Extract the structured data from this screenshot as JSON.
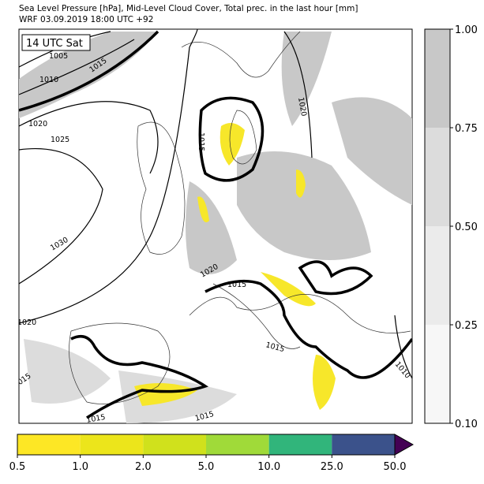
{
  "header": {
    "title": "Sea Level Pressure [hPa], Mid-Level Cloud Cover, Total prec. in the last hour [mm]",
    "subtitle": "WRF 03.09.2019 18:00 UTC +92"
  },
  "map": {
    "time_label": "14 UTC Sat",
    "contour_labels": [
      "1005",
      "1010",
      "1015",
      "1020",
      "1025",
      "1030",
      "1020",
      "1015",
      "1015",
      "1020",
      "1020",
      "1015",
      "1015",
      "1010",
      "1015",
      "1015"
    ]
  },
  "cloud_colorbar": {
    "ticks": [
      "0.10",
      "0.25",
      "0.50",
      "0.75",
      "1.00"
    ],
    "colors": [
      "#f7f7f7",
      "#ebebeb",
      "#dcdcdc",
      "#c8c8c8"
    ]
  },
  "precip_colorbar": {
    "ticks": [
      "0.5",
      "1.0",
      "2.0",
      "5.0",
      "10.0",
      "25.0",
      "50.0"
    ],
    "colors": [
      "#fde725",
      "#ece51b",
      "#d0e11c",
      "#a0da39",
      "#31b57b",
      "#3b528b"
    ],
    "extend_color": "#440154"
  }
}
